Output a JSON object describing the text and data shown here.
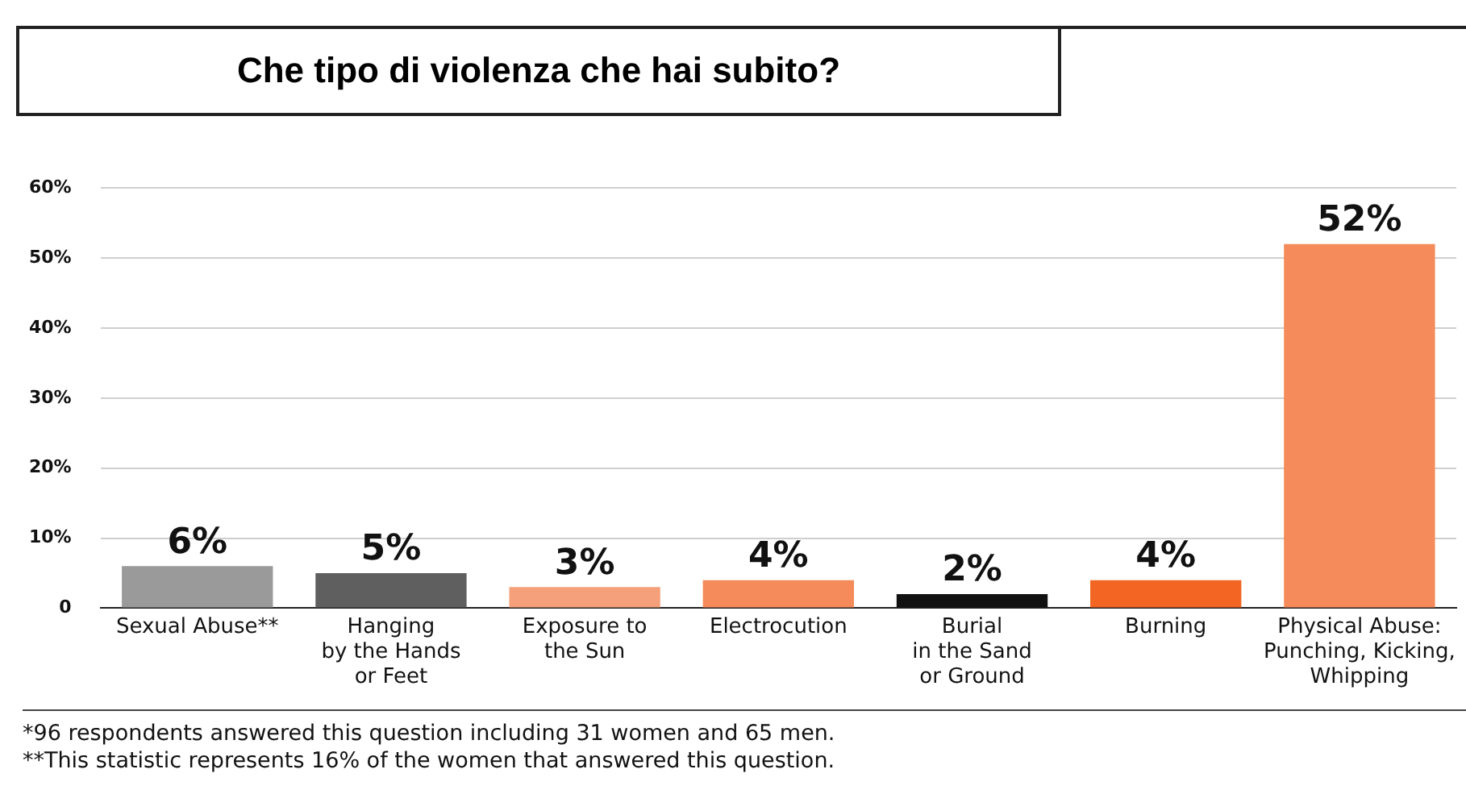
{
  "chart_data": {
    "type": "bar",
    "title": "Che tipo di violenza che hai subito?",
    "categories": [
      "Sexual Abuse**",
      "Hanging\nby the Hands\nor Feet",
      "Exposure to\nthe Sun",
      "Electrocution",
      "Burial\nin the Sand\nor Ground",
      "Burning",
      "Physical Abuse:\nPunching, Kicking,\nWhipping"
    ],
    "values": [
      6,
      5,
      3,
      4,
      2,
      4,
      52
    ],
    "colors": [
      "#9a9a9a",
      "#5f5f5f",
      "#f5a07a",
      "#f58a5a",
      "#111111",
      "#f26522",
      "#f58a5a"
    ],
    "value_labels": [
      "6%",
      "5%",
      "3%",
      "4%",
      "2%",
      "4%",
      "52%"
    ],
    "ylim": [
      0,
      60
    ],
    "yticks": [
      {
        "value": 0,
        "label": "0"
      },
      {
        "value": 10,
        "label": "10%"
      },
      {
        "value": 20,
        "label": "20%"
      },
      {
        "value": 30,
        "label": "30%"
      },
      {
        "value": 40,
        "label": "40%"
      },
      {
        "value": 50,
        "label": "50%"
      },
      {
        "value": 60,
        "label": "60%"
      }
    ],
    "grid": "y",
    "legend": false,
    "annotations": [
      "*96 respondents answered this question including 31 women and 65 men.",
      "**This statistic represents 16% of the women that answered this question."
    ]
  }
}
